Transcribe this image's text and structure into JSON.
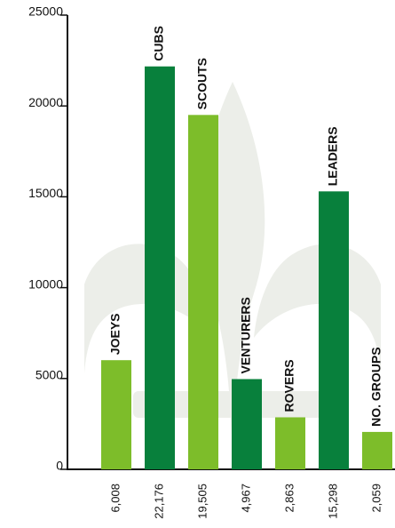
{
  "chart_data": {
    "type": "bar",
    "categories": [
      "JOEYS",
      "CUBS",
      "SCOUTS",
      "VENTURERS",
      "ROVERS",
      "LEADERS",
      "NO. GROUPS"
    ],
    "values": [
      6008,
      22176,
      19505,
      4967,
      2863,
      15298,
      2059
    ],
    "value_labels": [
      "6,008",
      "22,176",
      "19,505",
      "4,967",
      "2,863",
      "15,298",
      "2,059"
    ],
    "colors": [
      "#7dbd2a",
      "#08803c",
      "#7dbd2a",
      "#08803c",
      "#7dbd2a",
      "#08803c",
      "#7dbd2a"
    ],
    "ylim": [
      0,
      25000
    ],
    "yticks": [
      0,
      5000,
      10000,
      15000,
      20000,
      25000
    ],
    "grid": false
  }
}
